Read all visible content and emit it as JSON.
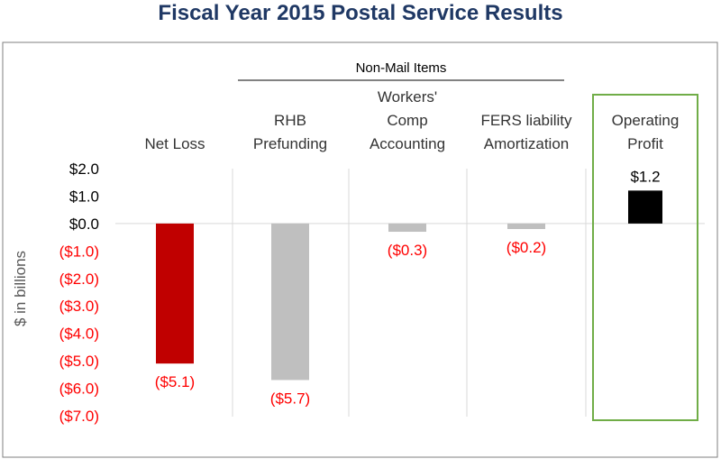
{
  "chart_data": {
    "type": "bar",
    "title": "Fiscal Year 2015 Postal Service Results",
    "ylabel": "$ in billions",
    "ylim": [
      -7,
      2
    ],
    "yticks": [
      {
        "value": 2,
        "label": "$2.0"
      },
      {
        "value": 1,
        "label": "$1.0"
      },
      {
        "value": 0,
        "label": "$0.0"
      },
      {
        "value": -1,
        "label": "($1.0)"
      },
      {
        "value": -2,
        "label": "($2.0)"
      },
      {
        "value": -3,
        "label": "($3.0)"
      },
      {
        "value": -4,
        "label": "($4.0)"
      },
      {
        "value": -5,
        "label": "($5.0)"
      },
      {
        "value": -6,
        "label": "($6.0)"
      },
      {
        "value": -7,
        "label": "($7.0)"
      }
    ],
    "categories": [
      [
        "Net Loss"
      ],
      [
        "RHB",
        "Prefunding"
      ],
      [
        "Workers'",
        "Comp",
        "Accounting"
      ],
      [
        "FERS liability",
        "Amortization"
      ],
      [
        "Operating",
        "Profit"
      ]
    ],
    "values": [
      -5.1,
      -5.7,
      -0.3,
      -0.2,
      1.2
    ],
    "data_labels": [
      "($5.1)",
      "($5.7)",
      "($0.3)",
      "($0.2)",
      "$1.2"
    ],
    "group_annotation": {
      "label": "Non-Mail Items",
      "categories": [
        1,
        2,
        3
      ]
    },
    "highlighted_category": 4,
    "grid": "vertical separators",
    "legend": "none"
  },
  "colors": {
    "title": "#1f3864",
    "net_loss_bar": "#c00000",
    "non_mail_bar": "#bfbfbf",
    "operating_profit_bar": "#000000",
    "negative_text": "#ff0000",
    "positive_text": "#000000",
    "highlight_box": "#70ad47",
    "separator": "#d9d9d9",
    "frame": "#7f7f7f"
  }
}
